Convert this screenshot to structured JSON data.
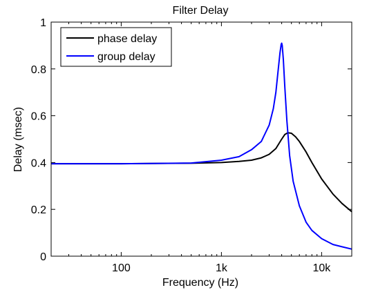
{
  "chart_data": {
    "type": "line",
    "title": "Filter Delay",
    "xlabel": "Frequency (Hz)",
    "ylabel": "Delay (msec)",
    "xscale": "log",
    "xlim": [
      20,
      20000
    ],
    "ylim": [
      0,
      1
    ],
    "xticks": [
      {
        "value": 100,
        "label": "100"
      },
      {
        "value": 1000,
        "label": "1k"
      },
      {
        "value": 10000,
        "label": "10k"
      }
    ],
    "yticks": [
      {
        "value": 0,
        "label": "0"
      },
      {
        "value": 0.2,
        "label": "0.2"
      },
      {
        "value": 0.4,
        "label": "0.4"
      },
      {
        "value": 0.6,
        "label": "0.6"
      },
      {
        "value": 0.8,
        "label": "0.8"
      },
      {
        "value": 1,
        "label": "1"
      }
    ],
    "grid": false,
    "legend_position": "top-left",
    "series": [
      {
        "name": "phase delay",
        "color": "#000000",
        "x": [
          20,
          50,
          100,
          200,
          500,
          1000,
          1500,
          2000,
          2500,
          3000,
          3500,
          4000,
          4300,
          4600,
          5000,
          5500,
          6000,
          7000,
          8000,
          10000,
          13000,
          16000,
          20000
        ],
        "y": [
          0.395,
          0.395,
          0.395,
          0.396,
          0.397,
          0.4,
          0.405,
          0.41,
          0.42,
          0.435,
          0.46,
          0.5,
          0.52,
          0.527,
          0.525,
          0.51,
          0.49,
          0.445,
          0.4,
          0.33,
          0.265,
          0.225,
          0.19
        ]
      },
      {
        "name": "group delay",
        "color": "#0000ff",
        "x": [
          20,
          50,
          100,
          200,
          500,
          1000,
          1500,
          2000,
          2500,
          3000,
          3300,
          3500,
          3700,
          3850,
          3950,
          4000,
          4050,
          4150,
          4300,
          4500,
          4800,
          5200,
          6000,
          7000,
          8000,
          10000,
          13000,
          16000,
          20000
        ],
        "y": [
          0.395,
          0.395,
          0.395,
          0.396,
          0.398,
          0.41,
          0.425,
          0.455,
          0.49,
          0.56,
          0.63,
          0.7,
          0.8,
          0.87,
          0.905,
          0.91,
          0.9,
          0.84,
          0.72,
          0.58,
          0.43,
          0.32,
          0.215,
          0.145,
          0.11,
          0.075,
          0.05,
          0.04,
          0.03
        ]
      }
    ]
  }
}
